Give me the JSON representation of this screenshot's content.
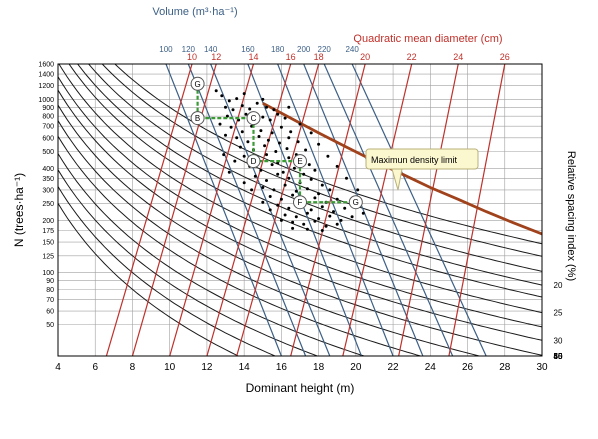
{
  "chart_data": {
    "type": "line",
    "title": "",
    "xlabel": "Dominant height (m)",
    "ylabel": "N (trees·ha⁻¹)",
    "top_axis_volume_label": "Volume (m³·ha⁻¹)",
    "top_axis_diameter_label": "Quadratic mean diameter (cm)",
    "right_axis_label": "Relative spacing index (%)",
    "xlim": [
      4,
      30
    ],
    "ylim": [
      33,
      1600
    ],
    "y_scale": "log",
    "grid": true,
    "x_ticks": [
      "4",
      "6",
      "8",
      "10",
      "12",
      "14",
      "16",
      "18",
      "20",
      "22",
      "24",
      "26",
      "28",
      "30"
    ],
    "y_ticks": [
      {
        "label": "1600",
        "value": 1600
      },
      {
        "label": "1400",
        "value": 1400
      },
      {
        "label": "1200",
        "value": 1200
      },
      {
        "label": "1000",
        "value": 1000
      },
      {
        "label": "900",
        "value": 900
      },
      {
        "label": "800",
        "value": 800
      },
      {
        "label": "700",
        "value": 700
      },
      {
        "label": "600",
        "value": 600
      },
      {
        "label": "500",
        "value": 500
      },
      {
        "label": "400",
        "value": 400
      },
      {
        "label": "350",
        "value": 350
      },
      {
        "label": "300",
        "value": 300
      },
      {
        "label": "250",
        "value": 250
      },
      {
        "label": "200",
        "value": 200
      },
      {
        "label": "175",
        "value": 175
      },
      {
        "label": "150",
        "value": 150
      },
      {
        "label": "125",
        "value": 125
      },
      {
        "label": "100",
        "value": 100
      },
      {
        "label": "90",
        "value": 90
      },
      {
        "label": "80",
        "value": 80
      },
      {
        "label": "70",
        "value": 70
      },
      {
        "label": "60",
        "value": 60
      },
      {
        "label": "50",
        "value": 50
      }
    ],
    "diameter_lines": [
      {
        "label": "10",
        "top_h": 11.2,
        "bottom_h": 6.6
      },
      {
        "label": "12",
        "top_h": 12.5,
        "bottom_h": 8.0
      },
      {
        "label": "14",
        "top_h": 14.5,
        "bottom_h": 10.0
      },
      {
        "label": "16",
        "top_h": 16.5,
        "bottom_h": 12.0
      },
      {
        "label": "18",
        "top_h": 18.0,
        "bottom_h": 13.6
      },
      {
        "label": "20",
        "top_h": 20.5,
        "bottom_h": 16.5
      },
      {
        "label": "22",
        "top_h": 23.0,
        "bottom_h": 19.3
      },
      {
        "label": "24",
        "top_h": 25.5,
        "bottom_h": 22.3
      },
      {
        "label": "26",
        "top_h": 28.0,
        "bottom_h": 25.0
      }
    ],
    "volume_lines": [
      {
        "label": "100",
        "top_h": 9.8,
        "bottom_h": 16.0
      },
      {
        "label": "120",
        "top_h": 11.0,
        "bottom_h": 17.3
      },
      {
        "label": "140",
        "top_h": 12.2,
        "bottom_h": 18.6
      },
      {
        "label": "160",
        "top_h": 14.2,
        "bottom_h": 20.3
      },
      {
        "label": "180",
        "top_h": 15.8,
        "bottom_h": 22.0
      },
      {
        "label": "200",
        "top_h": 17.2,
        "bottom_h": 23.6
      },
      {
        "label": "220",
        "top_h": 18.3,
        "bottom_h": 25.2
      },
      {
        "label": "240",
        "top_h": 19.8,
        "bottom_h": 27.0
      }
    ],
    "rsi_curves": [
      {
        "label": "",
        "n_at_8": 1300
      },
      {
        "label": "",
        "n_at_8": 1100
      },
      {
        "label": "",
        "n_at_8": 900
      },
      {
        "label": "20",
        "n_at_8": 750
      },
      {
        "label": "",
        "n_at_8": 640
      },
      {
        "label": "25",
        "n_at_8": 520
      },
      {
        "label": "",
        "n_at_8": 430
      },
      {
        "label": "30",
        "n_at_8": 360
      },
      {
        "label": "",
        "n_at_8": 295
      },
      {
        "label": "35",
        "n_at_8": 240
      },
      {
        "label": "40",
        "n_at_8": 195
      },
      {
        "label": "45",
        "n_at_8": 155
      },
      {
        "label": "50",
        "n_at_8": 125
      },
      {
        "label": "55",
        "n_at_8": 100
      },
      {
        "label": "60",
        "n_at_8": 80
      }
    ],
    "max_density_limit": {
      "label": "Maximun density limit",
      "points": [
        [
          15.0,
          950
        ],
        [
          16.5,
          780
        ],
        [
          18.0,
          640
        ],
        [
          19.5,
          530
        ],
        [
          21.0,
          440
        ],
        [
          22.5,
          370
        ],
        [
          24.0,
          310
        ],
        [
          25.5,
          265
        ],
        [
          27.0,
          225
        ],
        [
          28.5,
          193
        ],
        [
          30.0,
          167
        ]
      ]
    },
    "thinning_path": {
      "nodes": [
        {
          "label": "G",
          "h": 11.5,
          "n": 1230
        },
        {
          "label": "B",
          "h": 11.5,
          "n": 780
        },
        {
          "label": "C",
          "h": 14.5,
          "n": 780
        },
        {
          "label": "D",
          "h": 14.5,
          "n": 440
        },
        {
          "label": "E",
          "h": 17.0,
          "n": 440
        },
        {
          "label": "F",
          "h": 17.0,
          "n": 255
        },
        {
          "label": "G",
          "h": 20.0,
          "n": 255
        }
      ]
    },
    "scatter_points": [
      [
        12.8,
        1050
      ],
      [
        13.2,
        980
      ],
      [
        13.6,
        1010
      ],
      [
        13.0,
        900
      ],
      [
        13.4,
        870
      ],
      [
        13.9,
        920
      ],
      [
        14.3,
        880
      ],
      [
        14.7,
        950
      ],
      [
        15.2,
        900
      ],
      [
        15.6,
        870
      ],
      [
        13.1,
        800
      ],
      [
        13.7,
        760
      ],
      [
        14.1,
        820
      ],
      [
        14.5,
        740
      ],
      [
        15.0,
        790
      ],
      [
        15.4,
        760
      ],
      [
        15.8,
        820
      ],
      [
        16.2,
        780
      ],
      [
        12.7,
        720
      ],
      [
        13.3,
        690
      ],
      [
        13.9,
        650
      ],
      [
        14.4,
        700
      ],
      [
        14.9,
        660
      ],
      [
        15.5,
        640
      ],
      [
        16.0,
        690
      ],
      [
        16.5,
        650
      ],
      [
        13.6,
        600
      ],
      [
        14.2,
        570
      ],
      [
        14.8,
        610
      ],
      [
        15.3,
        580
      ],
      [
        15.9,
        560
      ],
      [
        16.4,
        600
      ],
      [
        16.9,
        570
      ],
      [
        13.8,
        530
      ],
      [
        14.5,
        510
      ],
      [
        15.1,
        540
      ],
      [
        15.7,
        500
      ],
      [
        16.3,
        520
      ],
      [
        16.8,
        480
      ],
      [
        17.3,
        510
      ],
      [
        14.0,
        470
      ],
      [
        14.6,
        450
      ],
      [
        15.2,
        480
      ],
      [
        15.8,
        430
      ],
      [
        16.4,
        460
      ],
      [
        16.9,
        440
      ],
      [
        17.5,
        420
      ],
      [
        14.3,
        410
      ],
      [
        14.9,
        390
      ],
      [
        15.5,
        420
      ],
      [
        16.1,
        380
      ],
      [
        16.7,
        400
      ],
      [
        17.2,
        370
      ],
      [
        17.8,
        390
      ],
      [
        14.6,
        360
      ],
      [
        15.2,
        340
      ],
      [
        15.8,
        370
      ],
      [
        16.4,
        350
      ],
      [
        17.0,
        330
      ],
      [
        17.6,
        345
      ],
      [
        18.2,
        320
      ],
      [
        15.0,
        310
      ],
      [
        15.6,
        300
      ],
      [
        16.2,
        320
      ],
      [
        16.8,
        295
      ],
      [
        17.4,
        305
      ],
      [
        18.0,
        285
      ],
      [
        18.6,
        300
      ],
      [
        15.4,
        275
      ],
      [
        16.0,
        265
      ],
      [
        16.6,
        280
      ],
      [
        17.2,
        260
      ],
      [
        17.8,
        270
      ],
      [
        18.4,
        255
      ],
      [
        19.0,
        265
      ],
      [
        15.8,
        245
      ],
      [
        16.4,
        235
      ],
      [
        17.0,
        250
      ],
      [
        17.6,
        230
      ],
      [
        18.2,
        240
      ],
      [
        18.8,
        225
      ],
      [
        19.4,
        235
      ],
      [
        16.2,
        215
      ],
      [
        16.8,
        210
      ],
      [
        17.4,
        220
      ],
      [
        18.0,
        205
      ],
      [
        18.6,
        212
      ],
      [
        19.2,
        200
      ],
      [
        16.6,
        195
      ],
      [
        17.2,
        190
      ],
      [
        17.8,
        198
      ],
      [
        18.4,
        185
      ],
      [
        19.0,
        190
      ],
      [
        13.0,
        620
      ],
      [
        12.9,
        480
      ],
      [
        13.5,
        440
      ],
      [
        13.2,
        380
      ],
      [
        14.0,
        330
      ],
      [
        14.4,
        300
      ],
      [
        15.0,
        255
      ],
      [
        15.4,
        230
      ],
      [
        16.0,
        200
      ],
      [
        16.6,
        180
      ],
      [
        17.4,
        178
      ],
      [
        18.2,
        175
      ],
      [
        19.8,
        210
      ],
      [
        20.4,
        220
      ],
      [
        12.5,
        1120
      ],
      [
        14.0,
        1080
      ],
      [
        15.0,
        1000
      ],
      [
        16.4,
        900
      ],
      [
        17.0,
        720
      ],
      [
        17.6,
        640
      ],
      [
        18.0,
        550
      ],
      [
        18.5,
        470
      ],
      [
        19.0,
        410
      ],
      [
        19.5,
        350
      ],
      [
        20.1,
        300
      ]
    ],
    "annotations": [
      "Maximun density limit"
    ]
  },
  "colors": {
    "diameter": "#c0302a",
    "volume": "#3c5f86",
    "rsi": "#1a1a1a",
    "limit": "#a0421c",
    "path": "#3a9a34",
    "grid": "#a0a0a0"
  }
}
